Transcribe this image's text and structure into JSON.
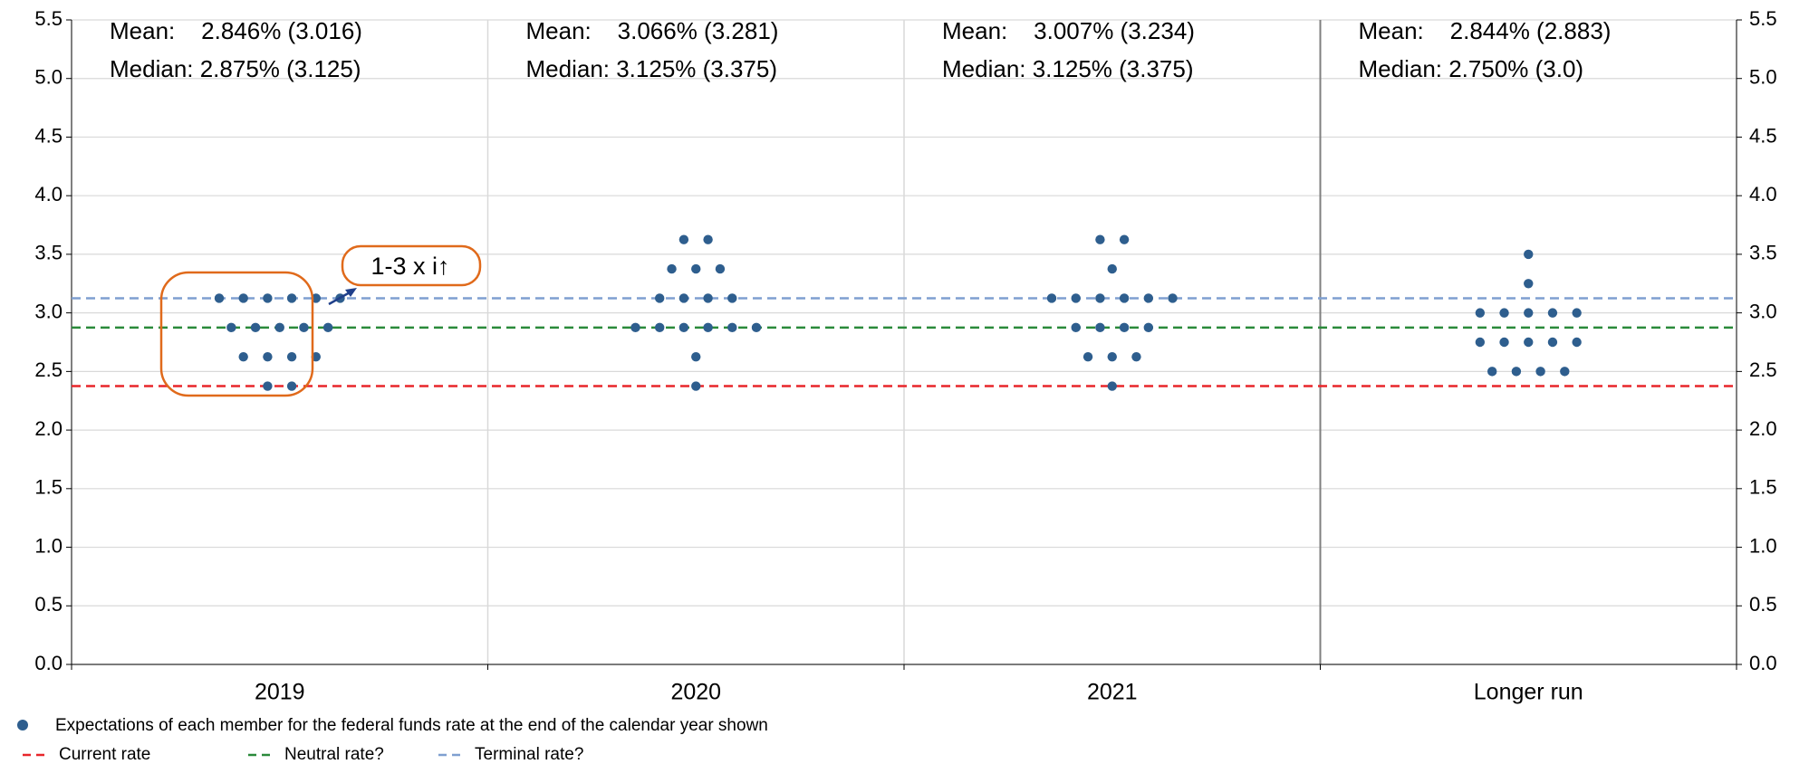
{
  "chart_data": {
    "type": "dot",
    "categories": [
      "2019",
      "2020",
      "2021",
      "Longer run"
    ],
    "series": [
      {
        "name": "Expectations of each member for the federal funds rate at the end of the calendar year shown",
        "color": "#2e5e8e",
        "values": [
          [
            3.125,
            3.125,
            3.125,
            3.125,
            3.125,
            3.125,
            2.875,
            2.875,
            2.875,
            2.875,
            2.875,
            2.625,
            2.625,
            2.625,
            2.625,
            2.375,
            2.375
          ],
          [
            3.625,
            3.625,
            3.375,
            3.375,
            3.375,
            3.125,
            3.125,
            3.125,
            3.125,
            2.875,
            2.875,
            2.875,
            2.875,
            2.875,
            2.875,
            2.625,
            2.375
          ],
          [
            3.625,
            3.625,
            3.375,
            3.125,
            3.125,
            3.125,
            3.125,
            3.125,
            3.125,
            2.875,
            2.875,
            2.875,
            2.875,
            2.625,
            2.625,
            2.625,
            2.375
          ],
          [
            3.5,
            3.25,
            3.0,
            3.0,
            3.0,
            3.0,
            3.0,
            2.75,
            2.75,
            2.75,
            2.75,
            2.75,
            2.5,
            2.5,
            2.5,
            2.5
          ]
        ]
      }
    ],
    "reference_lines": [
      {
        "name": "Current rate",
        "value": 2.375,
        "color": "#e8262a"
      },
      {
        "name": "Neutral rate?",
        "value": 2.875,
        "color": "#2a8a3a"
      },
      {
        "name": "Terminal rate?",
        "value": 3.125,
        "color": "#7f9fd0"
      }
    ],
    "stats": [
      {
        "mean": "Mean:    2.846% (3.016)",
        "median": "Median: 2.875% (3.125)"
      },
      {
        "mean": "Mean:    3.066% (3.281)",
        "median": "Median: 3.125% (3.375)"
      },
      {
        "mean": "Mean:    3.007% (3.234)",
        "median": "Median: 3.125% (3.375)"
      },
      {
        "mean": "Mean:    2.844% (2.883)",
        "median": "Median: 2.750% (3.0)"
      }
    ],
    "annotation": "1-3 x i↑",
    "ylim": [
      0,
      5.5
    ],
    "yticks": [
      {
        "value": 0,
        "label": "0.0"
      },
      {
        "value": 0.5,
        "label": "0.5"
      },
      {
        "value": 1,
        "label": "1.0"
      },
      {
        "value": 1.5,
        "label": "1.5"
      },
      {
        "value": 2,
        "label": "2.0"
      },
      {
        "value": 2.5,
        "label": "2.5"
      },
      {
        "value": 3,
        "label": "3.0"
      },
      {
        "value": 3.5,
        "label": "3.5"
      },
      {
        "value": 4,
        "label": "4.0"
      },
      {
        "value": 4.5,
        "label": "4.5"
      },
      {
        "value": 5,
        "label": "5.0"
      },
      {
        "value": 5.5,
        "label": "5.5"
      }
    ],
    "grid": true
  }
}
